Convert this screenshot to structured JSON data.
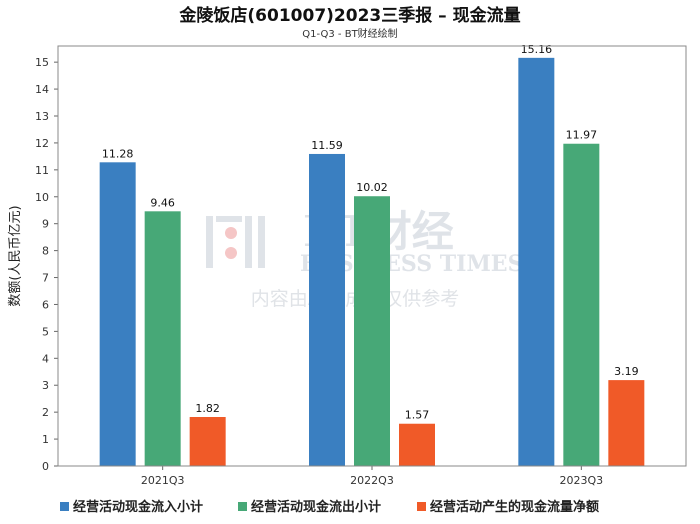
{
  "chart_data": {
    "type": "bar",
    "title": "金陵饭店(601007)2023三季报 – 现金流量",
    "subtitle": "Q1-Q3 - BT财经绘制",
    "ylabel": "数额(人民币亿元)",
    "xlabel": "",
    "ylim": [
      0,
      15.6
    ],
    "yticks": [
      0,
      1,
      2,
      3,
      4,
      5,
      6,
      7,
      8,
      9,
      10,
      11,
      12,
      13,
      14,
      15
    ],
    "categories": [
      "2021Q3",
      "2022Q3",
      "2023Q3"
    ],
    "series": [
      {
        "name": "经营活动现金流入小计",
        "color": "#3a7fc1",
        "values": [
          11.28,
          11.59,
          15.16
        ]
      },
      {
        "name": "经营活动现金流出小计",
        "color": "#47a877",
        "values": [
          9.46,
          10.02,
          11.97
        ]
      },
      {
        "name": "经营活动产生的现金流量净额",
        "color": "#f05a28",
        "values": [
          1.82,
          1.57,
          3.19
        ]
      }
    ],
    "legend_position": "bottom",
    "grid": false
  },
  "watermark": {
    "logo_text": "BT财经",
    "english": "BUSINESS TIMES",
    "note": "内容由AI生成，仅供参考"
  }
}
